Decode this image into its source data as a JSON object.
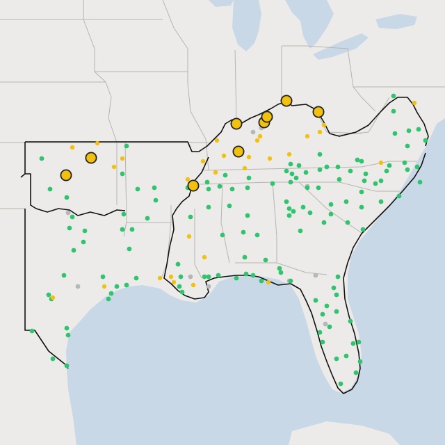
{
  "map": {
    "colors": {
      "land": "#ecebe9",
      "water": "#c9d8e6",
      "state_border": "#b8b4b0",
      "region_border": "#111111",
      "green_marker": "#2fc46d",
      "yellow_marker": "#f2c00e",
      "gray_marker": "#b5b8bb",
      "large_marker_stroke": "#222222"
    },
    "legend": []
  }
}
